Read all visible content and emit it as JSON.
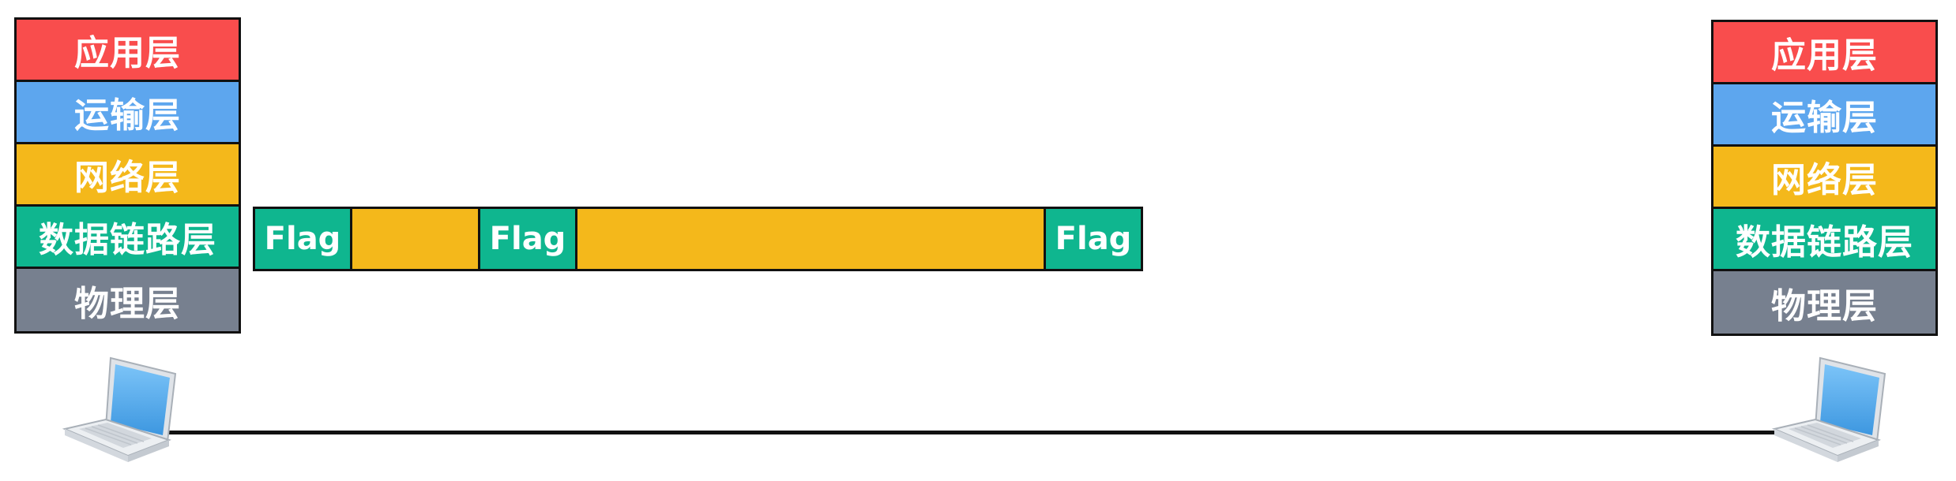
{
  "layers": [
    "应用层",
    "运输层",
    "网络层",
    "数据链路层",
    "物理层"
  ],
  "frame": {
    "flag_label": "Flag"
  },
  "colors": {
    "application": "#f94d4d",
    "transport": "#5da6ee",
    "network": "#f4b81b",
    "datalink": "#0fb68f",
    "physical": "#77808f"
  },
  "icons": [
    "laptop-icon",
    "laptop-icon"
  ]
}
